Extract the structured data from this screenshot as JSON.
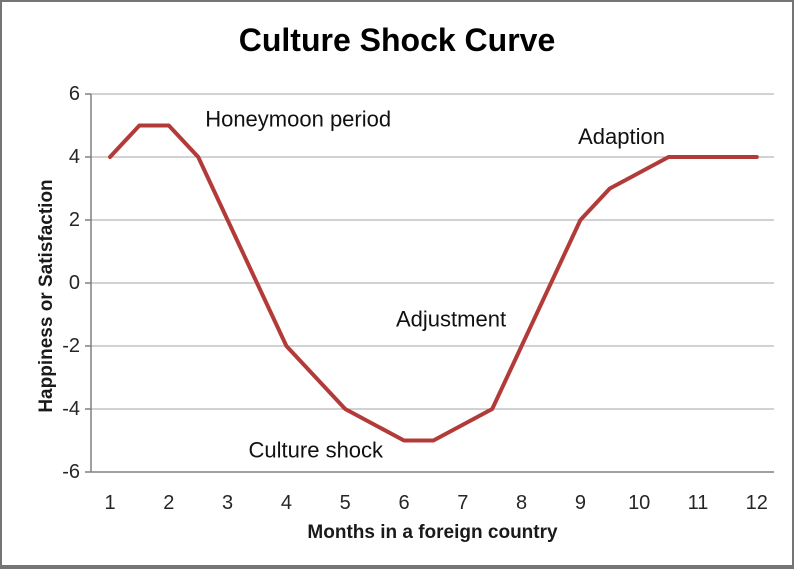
{
  "window": {
    "background": "#ffffff",
    "border_color": "#757575"
  },
  "chart_data": {
    "type": "line",
    "title": "Culture Shock Curve",
    "xlabel": "Months in a foreign country",
    "ylabel": "Happiness or Satisfaction",
    "x": [
      1,
      1.5,
      2,
      2.5,
      3,
      3.5,
      4,
      5,
      6,
      6.5,
      7.5,
      9,
      9.5,
      10.5,
      12
    ],
    "y": [
      4,
      5,
      5,
      4,
      2,
      0,
      -2,
      -4,
      -5,
      -5,
      -4,
      2,
      3,
      4,
      4
    ],
    "xlim": [
      1,
      12
    ],
    "ylim": [
      -6,
      6
    ],
    "x_ticks": [
      1,
      2,
      3,
      4,
      5,
      6,
      7,
      8,
      9,
      10,
      11,
      12
    ],
    "y_ticks": [
      6,
      4,
      2,
      0,
      -2,
      -4,
      -6
    ],
    "grid": "horizontal",
    "legend": "none",
    "line_color": "#b23b3a",
    "line_width": 4,
    "grid_color": "#a6a6a6",
    "axis_color": "#808080",
    "annotations": [
      {
        "label": "Honeymoon period",
        "month": 4.2,
        "value": 5.2
      },
      {
        "label": "Adaption",
        "month": 9.7,
        "value": 4.65
      },
      {
        "label": "Adjustment",
        "month": 6.8,
        "value": -1.15
      },
      {
        "label": "Culture shock",
        "month": 4.5,
        "value": -5.3
      }
    ]
  }
}
